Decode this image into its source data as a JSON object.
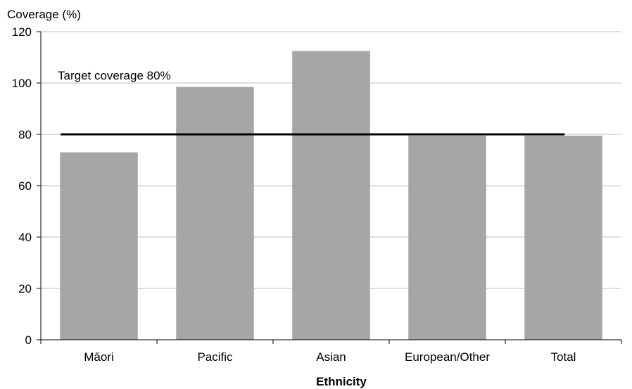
{
  "chart_data": {
    "type": "bar",
    "categories": [
      "Māori",
      "Pacific",
      "Asian",
      "European/Other",
      "Total"
    ],
    "values": [
      73,
      98.5,
      112.5,
      79.5,
      79.5
    ],
    "ylabel": "Coverage  (%)",
    "xlabel": "Ethnicity",
    "ylim": [
      0,
      120
    ],
    "yticks": [
      0,
      20,
      40,
      60,
      80,
      100,
      120
    ],
    "grid": true,
    "bar_color": "#a6a6a6",
    "target": {
      "value": 80,
      "label": "Target coverage 80%",
      "color": "#000000"
    }
  }
}
